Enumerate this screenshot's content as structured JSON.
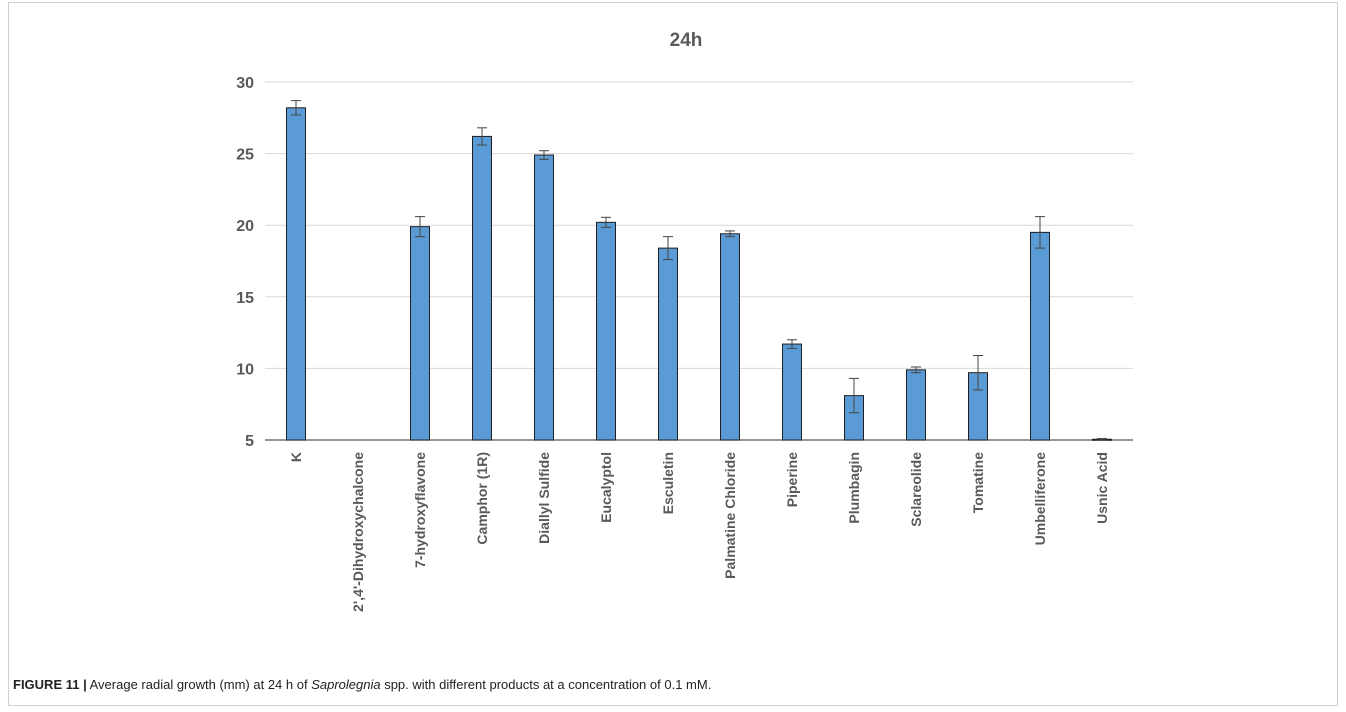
{
  "chart_data": {
    "type": "bar",
    "title": "24h",
    "xlabel": "",
    "ylabel": "",
    "ylim": [
      5,
      30
    ],
    "yticks": [
      5,
      10,
      15,
      20,
      25,
      30
    ],
    "grid": true,
    "error_bars": true,
    "categories": [
      "K",
      "2',4'-Dihydroxychalcone",
      "7-hydroxyflavone",
      "Camphor (1R)",
      "Diallyl Sulfide",
      "Eucalyptol",
      "Esculetin",
      "Palmatine Chloride",
      "Piperine",
      "Plumbagin",
      "Sclareolide",
      "Tomatine",
      "Umbelliferone",
      "Usnic Acid"
    ],
    "series": [
      {
        "values": [
          28.2,
          null,
          19.9,
          26.2,
          24.9,
          20.2,
          18.4,
          19.4,
          11.7,
          8.1,
          9.9,
          9.7,
          19.5,
          5.05
        ],
        "errors": [
          0.5,
          null,
          0.7,
          0.6,
          0.3,
          0.35,
          0.8,
          0.2,
          0.3,
          1.2,
          0.2,
          1.2,
          1.1,
          0.05
        ],
        "color": "#5b9bd5"
      }
    ]
  },
  "caption": {
    "label": "FIGURE 11 |",
    "text_before": " Average radial growth (mm) at 24 h of ",
    "organism": "Saprolegnia",
    "text_after": " spp. with different products at a concentration of 0.1 mM."
  }
}
